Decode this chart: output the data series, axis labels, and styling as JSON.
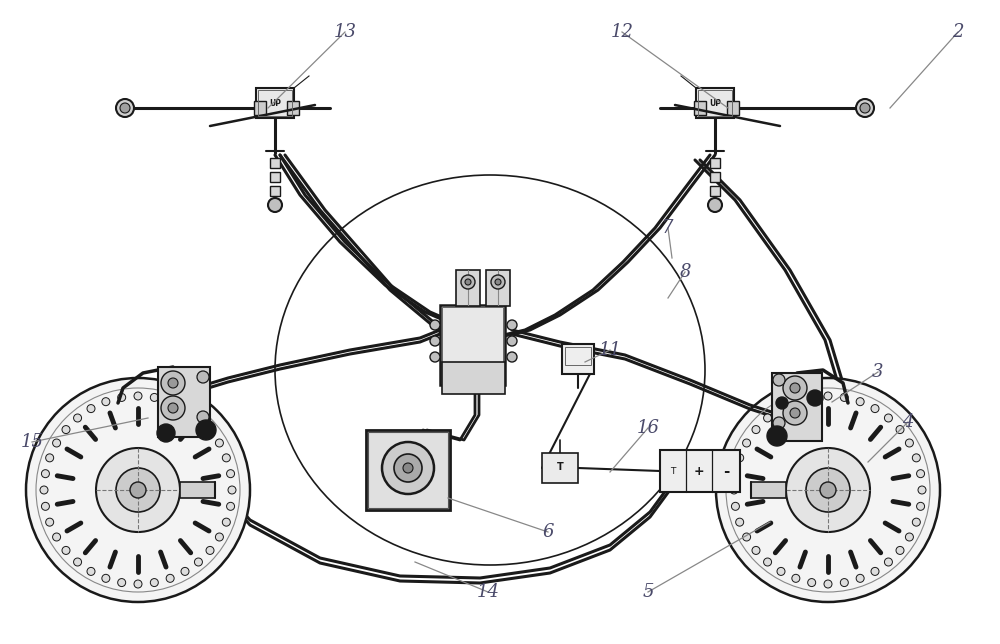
{
  "bg_color": "#ffffff",
  "line_color": "#1a1a1a",
  "label_color": "#4a4a6a",
  "figsize": [
    10.0,
    6.44
  ],
  "dpi": 100,
  "labels": [
    [
      "2",
      958,
      32
    ],
    [
      "3",
      878,
      372
    ],
    [
      "4",
      908,
      422
    ],
    [
      "5",
      648,
      592
    ],
    [
      "6",
      548,
      532
    ],
    [
      "7",
      668,
      228
    ],
    [
      "8",
      685,
      272
    ],
    [
      "11",
      610,
      350
    ],
    [
      "12",
      622,
      32
    ],
    [
      "13",
      345,
      32
    ],
    [
      "14",
      488,
      592
    ],
    [
      "15",
      32,
      442
    ],
    [
      "16",
      648,
      428
    ]
  ],
  "label_lines": [
    [
      "2",
      958,
      32,
      890,
      108
    ],
    [
      "3",
      878,
      372,
      832,
      402
    ],
    [
      "4",
      908,
      422,
      868,
      462
    ],
    [
      "5",
      648,
      592,
      770,
      522
    ],
    [
      "6",
      548,
      532,
      448,
      498
    ],
    [
      "7",
      668,
      228,
      672,
      258
    ],
    [
      "8",
      685,
      272,
      668,
      298
    ],
    [
      "11",
      610,
      350,
      585,
      362
    ],
    [
      "12",
      622,
      32,
      728,
      108
    ],
    [
      "13",
      345,
      32,
      268,
      108
    ],
    [
      "14",
      488,
      592,
      415,
      562
    ],
    [
      "15",
      32,
      442,
      148,
      418
    ],
    [
      "16",
      648,
      428,
      610,
      472
    ]
  ]
}
